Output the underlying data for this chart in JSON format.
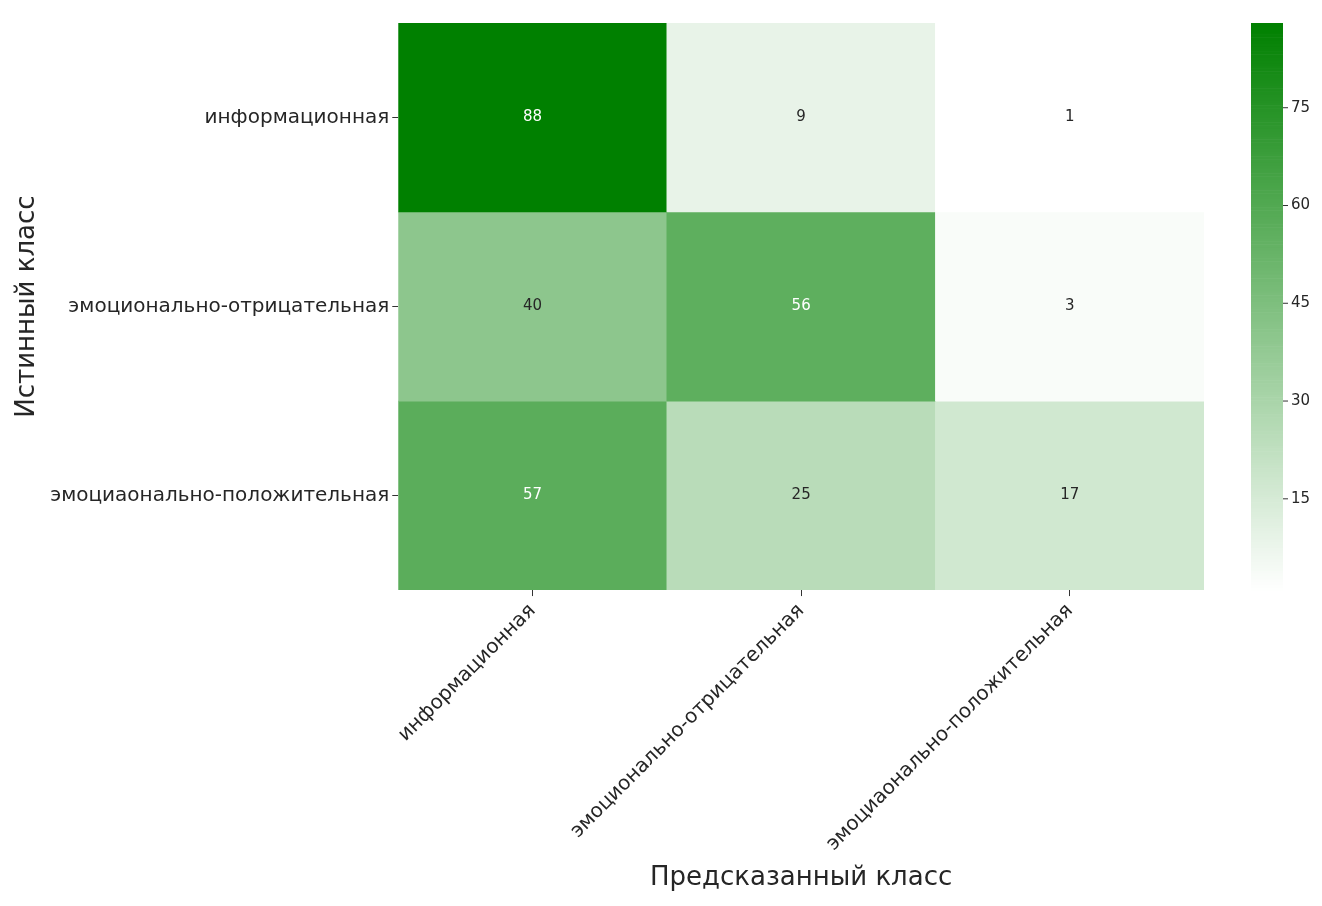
{
  "chart_data": {
    "type": "heatmap",
    "xlabel": "Предсказанный класс",
    "ylabel": "Истинный класс",
    "categories": [
      "информационная",
      "эмоционально-отрицательная",
      "эмоциаонально-положительная"
    ],
    "y_categories": [
      "информационная",
      "эмоционально-отрицательная",
      "эмоциаонально-положительная"
    ],
    "cells": [
      [
        88,
        9,
        1
      ],
      [
        40,
        56,
        3
      ],
      [
        57,
        25,
        17
      ]
    ],
    "colors": [
      "#ffffff",
      "#008000"
    ],
    "clim": [
      1,
      88
    ],
    "cticks": [
      15,
      30,
      45,
      60,
      75
    ],
    "data_labels": true,
    "legend": false,
    "grid": false
  }
}
